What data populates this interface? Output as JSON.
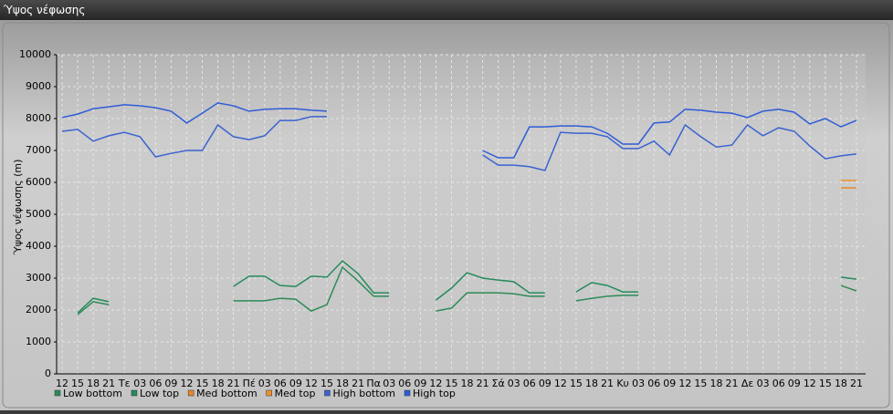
{
  "chart_data": {
    "type": "line",
    "title": "Ύψος νέφωσης",
    "y_label": "Ύψος νέφωσης (m)",
    "categories": [
      "12",
      "15",
      "18",
      "21",
      "Τε",
      "03",
      "06",
      "09",
      "12",
      "15",
      "18",
      "21",
      "Πέ",
      "03",
      "06",
      "09",
      "12",
      "15",
      "18",
      "21",
      "Πα",
      "03",
      "06",
      "09",
      "12",
      "15",
      "18",
      "21",
      "Σά",
      "03",
      "06",
      "09",
      "12",
      "15",
      "18",
      "21",
      "Κυ",
      "03",
      "06",
      "09",
      "12",
      "15",
      "18",
      "21",
      "Δε",
      "03",
      "06",
      "09",
      "12",
      "15",
      "18",
      "21"
    ],
    "ylim": [
      0,
      10000
    ],
    "yticks": [
      0,
      1000,
      2000,
      3000,
      4000,
      5000,
      6000,
      7000,
      8000,
      9000,
      10000
    ],
    "grid": true,
    "series": [
      {
        "name": "Low bottom",
        "color": "#2e8b57",
        "values": [
          null,
          1860,
          2260,
          2170,
          null,
          null,
          null,
          null,
          null,
          null,
          null,
          2290,
          2290,
          2290,
          2370,
          2340,
          1970,
          2170,
          3340,
          2910,
          2430,
          2430,
          null,
          null,
          1970,
          2060,
          2540,
          2540,
          2540,
          2510,
          2430,
          2430,
          null,
          2290,
          2370,
          2430,
          2460,
          2460,
          null,
          null,
          null,
          null,
          null,
          null,
          null,
          null,
          null,
          null,
          null,
          null,
          2770,
          2600
        ]
      },
      {
        "name": "Low top",
        "color": "#238b5a",
        "values": [
          null,
          1910,
          2370,
          2260,
          null,
          null,
          null,
          null,
          null,
          null,
          null,
          2740,
          3060,
          3060,
          2770,
          2740,
          3060,
          3030,
          3540,
          3140,
          2540,
          2540,
          null,
          null,
          2310,
          2690,
          3170,
          3000,
          2940,
          2890,
          2540,
          2540,
          null,
          2570,
          2860,
          2770,
          2570,
          2570,
          null,
          null,
          null,
          null,
          null,
          null,
          null,
          null,
          null,
          null,
          null,
          null,
          3030,
          2970
        ]
      },
      {
        "name": "Med bottom",
        "color": "#e8862a",
        "values": [
          null,
          null,
          null,
          null,
          null,
          null,
          null,
          null,
          null,
          null,
          null,
          null,
          null,
          null,
          null,
          null,
          null,
          null,
          null,
          null,
          null,
          null,
          null,
          null,
          null,
          null,
          null,
          null,
          null,
          null,
          null,
          null,
          null,
          null,
          null,
          null,
          null,
          null,
          null,
          null,
          null,
          null,
          null,
          null,
          null,
          null,
          null,
          null,
          null,
          null,
          5830,
          5830
        ]
      },
      {
        "name": "Med top",
        "color": "#f0902a",
        "values": [
          null,
          null,
          null,
          null,
          null,
          null,
          null,
          null,
          null,
          null,
          null,
          null,
          null,
          null,
          null,
          null,
          null,
          null,
          null,
          null,
          null,
          null,
          null,
          null,
          null,
          null,
          null,
          null,
          null,
          null,
          null,
          null,
          null,
          null,
          null,
          null,
          null,
          null,
          null,
          null,
          null,
          null,
          null,
          null,
          null,
          null,
          null,
          null,
          null,
          null,
          6060,
          6060
        ]
      },
      {
        "name": "High bottom",
        "color": "#3a63d0",
        "values": [
          7600,
          7660,
          7290,
          7460,
          7570,
          7430,
          6800,
          6910,
          7000,
          7000,
          7800,
          7430,
          7340,
          7460,
          7940,
          7940,
          8060,
          8060,
          null,
          null,
          null,
          null,
          null,
          null,
          null,
          null,
          null,
          6860,
          6540,
          6540,
          6490,
          6370,
          7570,
          7540,
          7540,
          7430,
          7060,
          7060,
          7290,
          6860,
          7800,
          7430,
          7110,
          7170,
          7800,
          7460,
          7710,
          7600,
          7140,
          6740,
          6830,
          6890
        ]
      },
      {
        "name": "High top",
        "color": "#2f5bd8",
        "values": [
          8030,
          8140,
          8310,
          8370,
          8430,
          8400,
          8340,
          8230,
          7860,
          8170,
          8490,
          8400,
          8230,
          8290,
          8310,
          8310,
          8260,
          8230,
          null,
          null,
          null,
          null,
          null,
          null,
          null,
          null,
          null,
          7000,
          6770,
          6770,
          7740,
          7740,
          7770,
          7770,
          7740,
          7540,
          7200,
          7200,
          7860,
          7890,
          8290,
          8260,
          8200,
          8170,
          8030,
          8230,
          8290,
          8200,
          7830,
          8000,
          7740,
          7940
        ]
      }
    ]
  }
}
